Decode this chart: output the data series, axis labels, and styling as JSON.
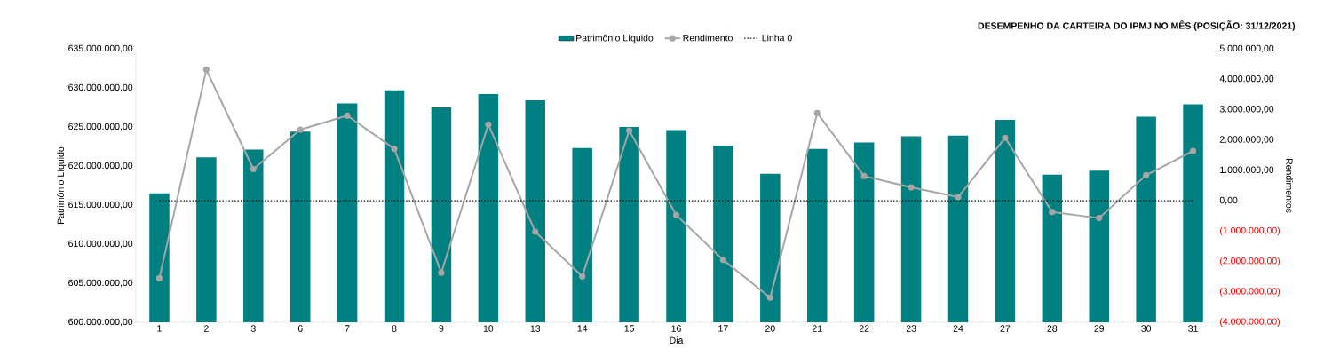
{
  "chart_data": {
    "type": "bar",
    "title": "DESEMPENHO DA CARTEIRA DO IPMJ NO MÊS (POSIÇÃO: 31/12/2021)",
    "xlabel": "Dia",
    "ylabel": "Patrimônio Líquido",
    "y2label": "Rendimentos",
    "categories": [
      "1",
      "2",
      "3",
      "6",
      "7",
      "8",
      "9",
      "10",
      "13",
      "14",
      "15",
      "16",
      "17",
      "20",
      "21",
      "22",
      "23",
      "24",
      "27",
      "28",
      "29",
      "30",
      "31"
    ],
    "series": [
      {
        "name": "Patrimônio Líquido",
        "color": "#008080",
        "values": [
          616500000,
          621100000,
          622100000,
          624400000,
          628000000,
          629700000,
          627500000,
          629200000,
          628400000,
          622300000,
          625000000,
          624600000,
          622600000,
          619000000,
          622200000,
          623000000,
          623800000,
          623900000,
          625900000,
          618900000,
          619400000,
          626300000,
          627900000
        ]
      },
      {
        "name": "Rendimento",
        "type": "line",
        "axis": "y2",
        "color": "#a6a6a6",
        "values": [
          -2550000,
          4310000,
          1040000,
          2340000,
          2800000,
          1710000,
          -2370000,
          2510000,
          -1020000,
          -2490000,
          2310000,
          -470000,
          -1950000,
          -3190000,
          2890000,
          810000,
          440000,
          120000,
          2070000,
          -370000,
          -570000,
          840000,
          1640000
        ]
      }
    ],
    "ylim": [
      600000000,
      635000000
    ],
    "yticks": [
      {
        "value": 600000000,
        "label": "600.000.000,00"
      },
      {
        "value": 605000000,
        "label": "605.000.000,00"
      },
      {
        "value": 610000000,
        "label": "610.000.000,00"
      },
      {
        "value": 615000000,
        "label": "615.000.000,00"
      },
      {
        "value": 620000000,
        "label": "620.000.000,00"
      },
      {
        "value": 625000000,
        "label": "625.000.000,00"
      },
      {
        "value": 630000000,
        "label": "630.000.000,00"
      },
      {
        "value": 635000000,
        "label": "635.000.000,00"
      }
    ],
    "y2lim": [
      -4000000,
      5000000
    ],
    "y2ticks": [
      {
        "value": -4000000,
        "label": "(4.000.000,00)"
      },
      {
        "value": -3000000,
        "label": "(3.000.000,00)"
      },
      {
        "value": -2000000,
        "label": "(2.000.000,00)"
      },
      {
        "value": -1000000,
        "label": "(1.000.000,00)"
      },
      {
        "value": 0,
        "label": "0,00"
      },
      {
        "value": 1000000,
        "label": "1.000.000,00"
      },
      {
        "value": 2000000,
        "label": "2.000.000,00"
      },
      {
        "value": 3000000,
        "label": "3.000.000,00"
      },
      {
        "value": 4000000,
        "label": "4.000.000,00"
      },
      {
        "value": 5000000,
        "label": "5.000.000,00"
      }
    ],
    "ref_lines": [
      {
        "axis": "y2",
        "value": 0,
        "label": "Linha 0",
        "color": "#000000",
        "line_style": "dotted"
      }
    ],
    "marker": "circle",
    "legend": "top"
  }
}
